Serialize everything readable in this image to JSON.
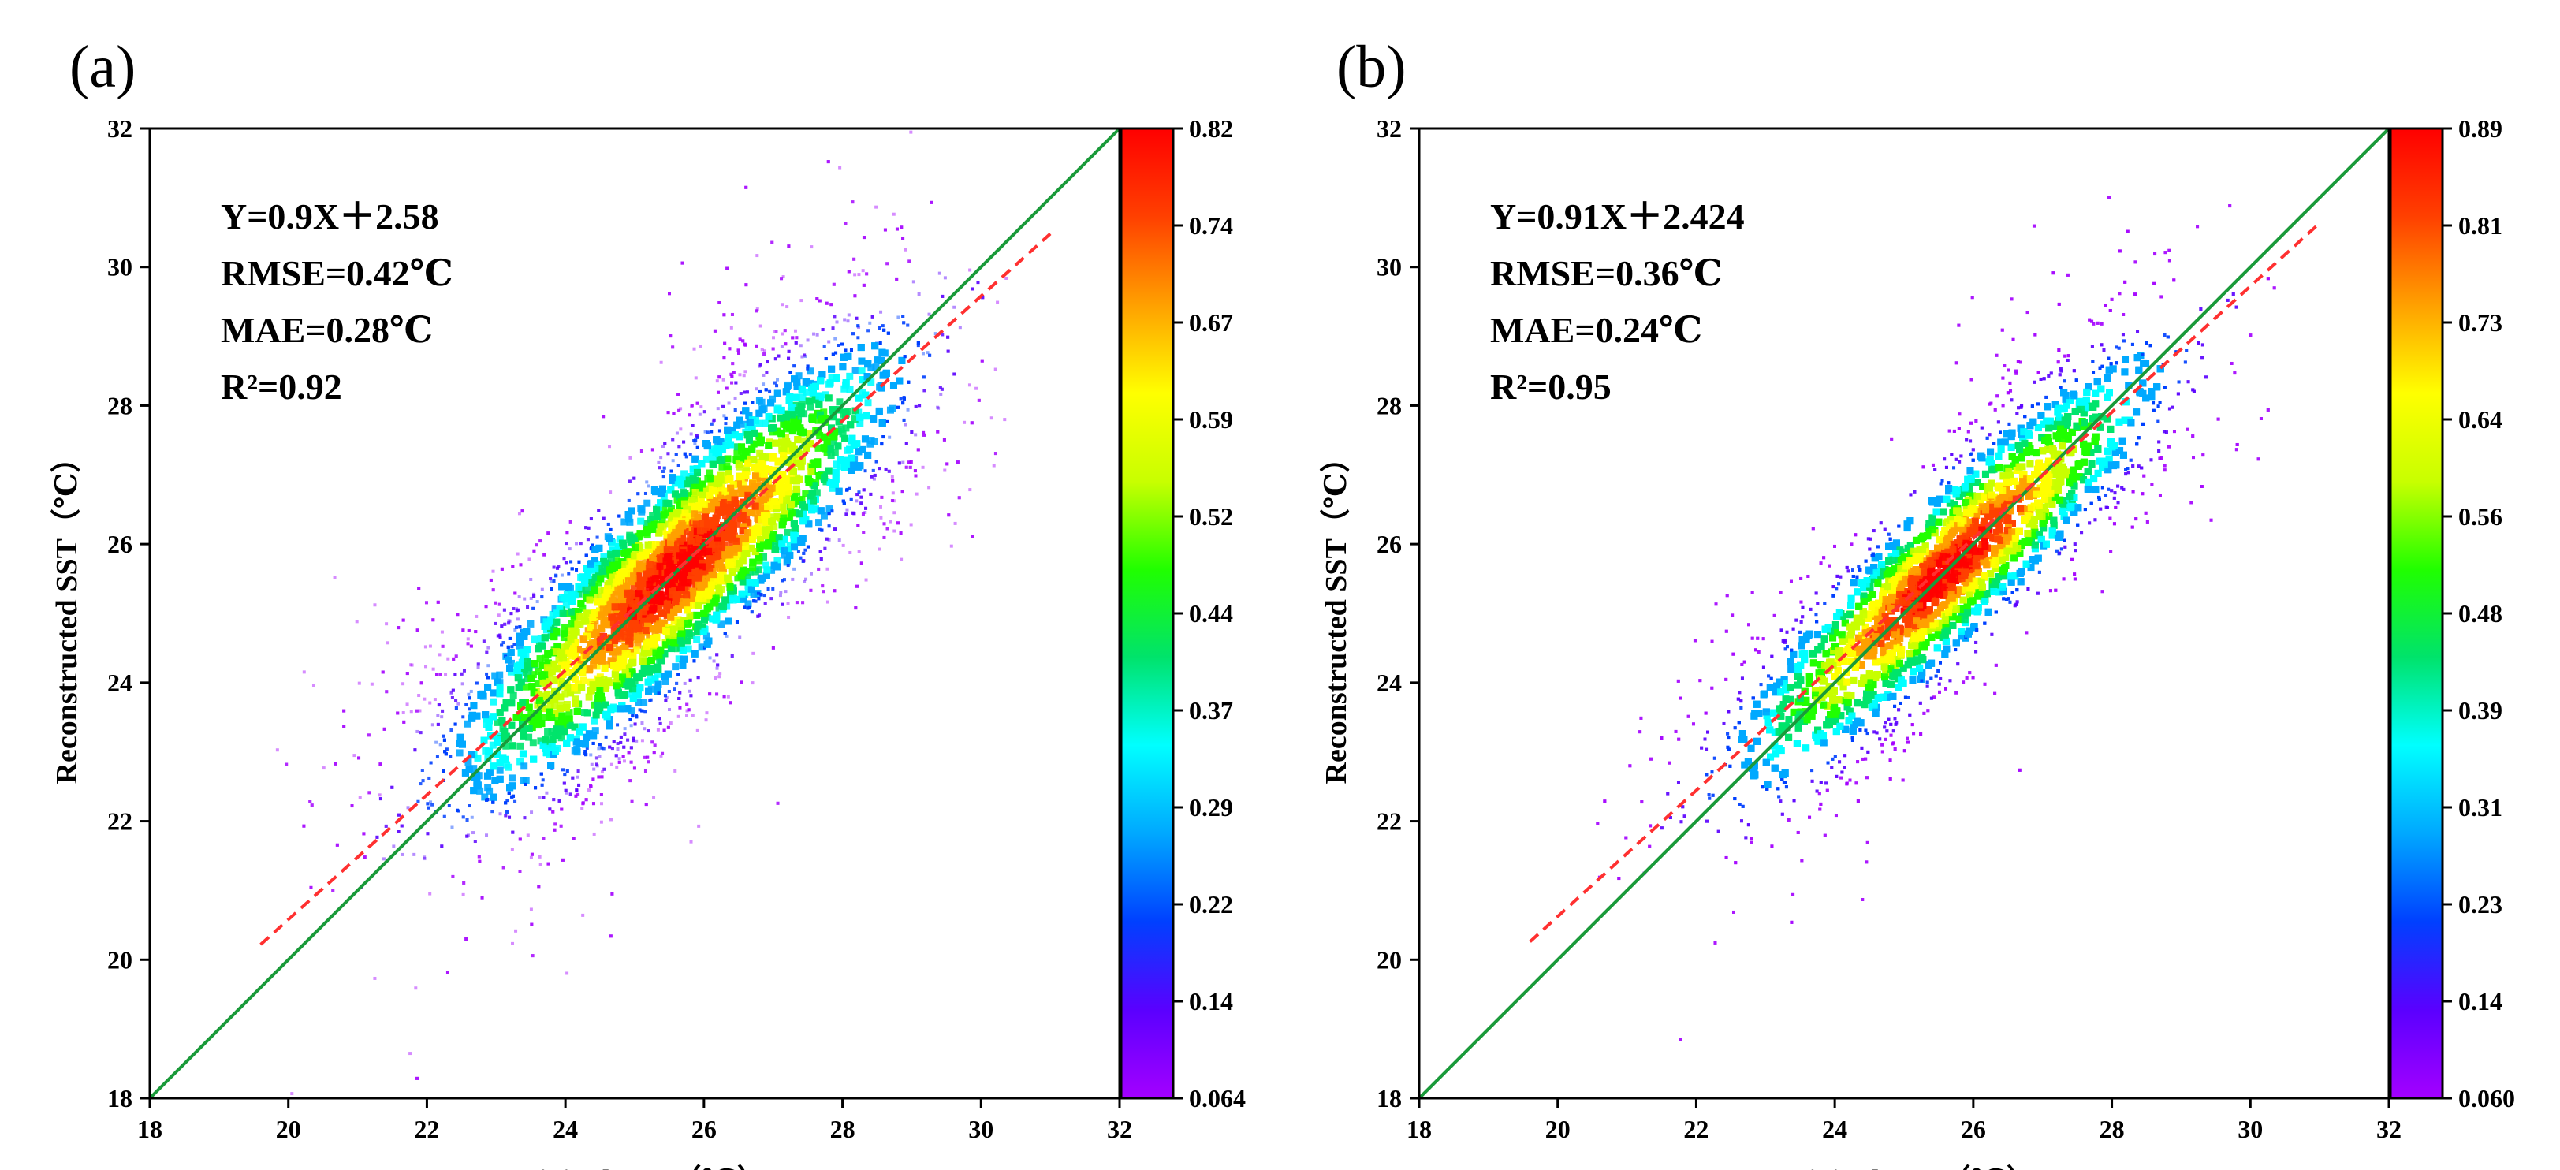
{
  "chart_data": [
    {
      "type": "scatter",
      "subtype": "density-scatter",
      "panel_label": "(a)",
      "xlabel": "Original SST（℃）",
      "ylabel": "Reconstructed SST（℃）",
      "xlim": [
        18,
        32
      ],
      "ylim": [
        18,
        32
      ],
      "xticks": [
        "18",
        "20",
        "22",
        "24",
        "26",
        "28",
        "30",
        "32"
      ],
      "yticks": [
        "18",
        "20",
        "22",
        "24",
        "26",
        "28",
        "30",
        "32"
      ],
      "annotations": [
        "Y=0.9X＋2.58",
        "RMSE=0.42℃",
        "MAE=0.28℃",
        "R²=0.92"
      ],
      "fit": {
        "slope": 0.9,
        "intercept": 2.58,
        "x_range": [
          19.6,
          31.0
        ],
        "color": "#ff3030",
        "style": "dashed"
      },
      "identity_line": {
        "x_range": [
          18,
          32
        ],
        "color": "#1a9a3a"
      },
      "density": {
        "center": [
          25.6,
          25.6
        ],
        "spread_major": 2.3,
        "spread_minor": 0.55,
        "x_range": [
          19.8,
          30.4
        ]
      },
      "colorbar": {
        "range": [
          0.064,
          0.82
        ],
        "tick_labels": [
          "0.82",
          "0.74",
          "0.67",
          "0.59",
          "0.52",
          "0.44",
          "0.37",
          "0.29",
          "0.22",
          "0.14",
          "0.064"
        ],
        "colormap": [
          "#a400ff",
          "#5a00ff",
          "#0040ff",
          "#00a8ff",
          "#00ffff",
          "#00e36b",
          "#20ff00",
          "#c8ff00",
          "#ffff00",
          "#ffa000",
          "#ff4000",
          "#ff0000"
        ]
      }
    },
    {
      "type": "scatter",
      "subtype": "density-scatter",
      "panel_label": "(b)",
      "xlabel": "Original SST（℃）",
      "ylabel": "Reconstructed SST（℃）",
      "xlim": [
        18,
        32
      ],
      "ylim": [
        18,
        32
      ],
      "xticks": [
        "18",
        "20",
        "22",
        "24",
        "26",
        "28",
        "30",
        "32"
      ],
      "yticks": [
        "18",
        "20",
        "22",
        "24",
        "26",
        "28",
        "30",
        "32"
      ],
      "annotations": [
        "Y=0.91X＋2.424",
        "RMSE=0.36℃",
        "MAE=0.24℃",
        "R²=0.95"
      ],
      "fit": {
        "slope": 0.91,
        "intercept": 2.424,
        "x_range": [
          19.6,
          31.0
        ],
        "color": "#ff3030",
        "style": "dashed"
      },
      "identity_line": {
        "x_range": [
          18,
          32
        ],
        "color": "#1a9a3a"
      },
      "density": {
        "center": [
          25.6,
          25.6
        ],
        "spread_major": 2.2,
        "spread_minor": 0.45,
        "x_range": [
          19.8,
          30.4
        ]
      },
      "colorbar": {
        "range": [
          0.06,
          0.89
        ],
        "tick_labels": [
          "0.89",
          "0.81",
          "0.73",
          "0.64",
          "0.56",
          "0.48",
          "0.39",
          "0.31",
          "0.23",
          "0.14",
          "0.060"
        ],
        "colormap": [
          "#a400ff",
          "#5a00ff",
          "#0040ff",
          "#00a8ff",
          "#00ffff",
          "#00e36b",
          "#20ff00",
          "#c8ff00",
          "#ffff00",
          "#ffa000",
          "#ff4000",
          "#ff0000"
        ]
      }
    }
  ]
}
